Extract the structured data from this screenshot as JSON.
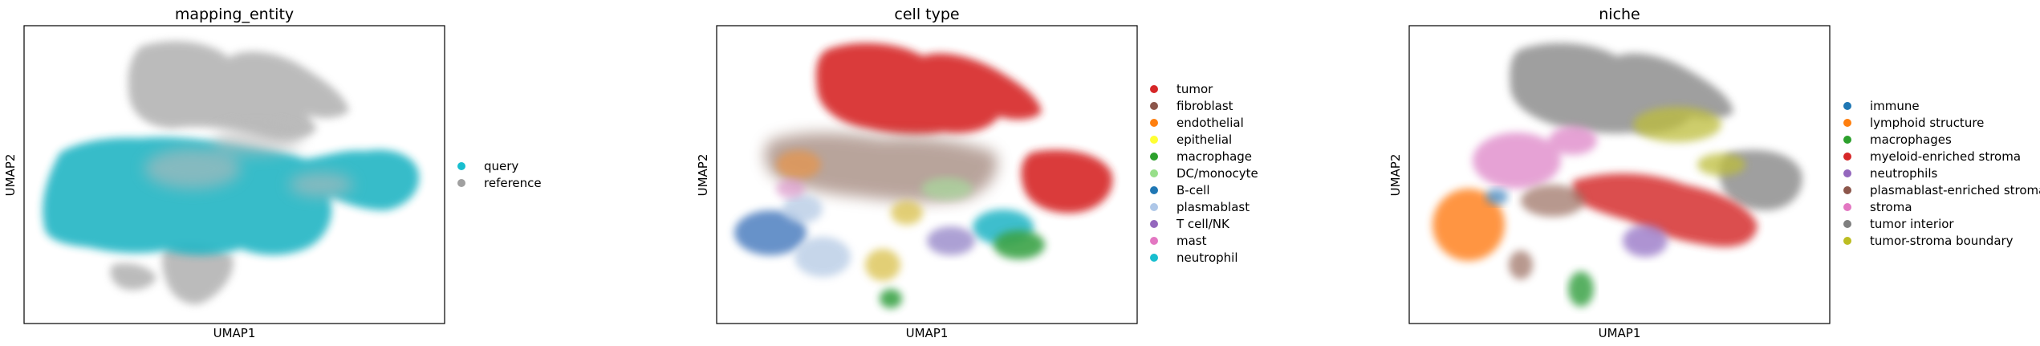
{
  "chart_data": [
    {
      "type": "scatter",
      "title": "mapping_entity",
      "xlabel": "UMAP1",
      "ylabel": "UMAP2",
      "grid": false,
      "legend_placement": "right",
      "categories": [
        {
          "name": "query",
          "color": "#17becf"
        },
        {
          "name": "reference",
          "color": "#a0a0a0"
        }
      ]
    },
    {
      "type": "scatter",
      "title": "cell type",
      "xlabel": "UMAP1",
      "ylabel": "UMAP2",
      "grid": false,
      "legend_placement": "right",
      "categories": [
        {
          "name": "tumor",
          "color": "#d62728"
        },
        {
          "name": "fibroblast",
          "color": "#8c564b"
        },
        {
          "name": "endothelial",
          "color": "#ff7f0e"
        },
        {
          "name": "epithelial",
          "color": "#ffff33"
        },
        {
          "name": "macrophage",
          "color": "#2ca02c"
        },
        {
          "name": "DC/monocyte",
          "color": "#98df8a"
        },
        {
          "name": "B-cell",
          "color": "#1f77b4"
        },
        {
          "name": "plasmablast",
          "color": "#aec7e8"
        },
        {
          "name": "T cell/NK",
          "color": "#9467bd"
        },
        {
          "name": "mast",
          "color": "#e377c2"
        },
        {
          "name": "neutrophil",
          "color": "#17becf"
        }
      ]
    },
    {
      "type": "scatter",
      "title": "niche",
      "xlabel": "UMAP1",
      "ylabel": "UMAP2",
      "grid": false,
      "legend_placement": "right",
      "categories": [
        {
          "name": "immune",
          "color": "#1f77b4"
        },
        {
          "name": "lymphoid structure",
          "color": "#ff7f0e"
        },
        {
          "name": "macrophages",
          "color": "#2ca02c"
        },
        {
          "name": "myeloid-enriched stroma",
          "color": "#d62728"
        },
        {
          "name": "neutrophils",
          "color": "#9467bd"
        },
        {
          "name": "plasmablast-enriched stroma",
          "color": "#8c564b"
        },
        {
          "name": "stroma",
          "color": "#e377c2"
        },
        {
          "name": "tumor interior",
          "color": "#7f7f7f"
        },
        {
          "name": "tumor-stroma boundary",
          "color": "#bcbd22"
        }
      ]
    }
  ]
}
